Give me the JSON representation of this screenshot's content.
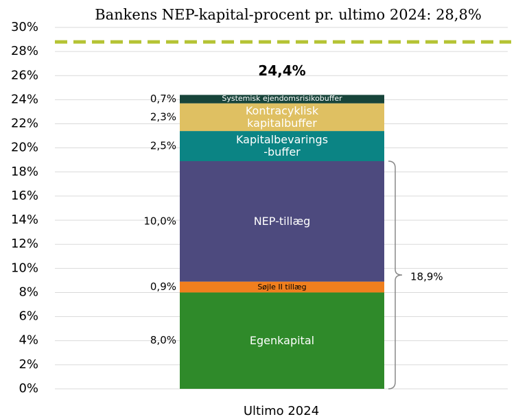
{
  "chart_data": {
    "type": "stacked_bar",
    "title": "Bankens NEP-kapital-procent pr. ultimo 2024: 28,8%",
    "categories": [
      "Ultimo 2024"
    ],
    "series": [
      {
        "name": "Egenkapital",
        "color": "#2f8a2a",
        "label_color": "#ffffff",
        "values": [
          8.0
        ],
        "value_labels": [
          "8,0%"
        ]
      },
      {
        "name": "Søjle II tillæg",
        "color": "#f07f1e",
        "label_color": "#000000",
        "values": [
          0.9
        ],
        "value_labels": [
          "0,9%"
        ]
      },
      {
        "name": "NEP-tillæg",
        "color": "#4d4a7e",
        "label_color": "#ffffff",
        "values": [
          10.0
        ],
        "value_labels": [
          "10,0%"
        ]
      },
      {
        "name": "Kapitalbevarings\n-buffer",
        "color": "#0b8484",
        "label_color": "#ffffff",
        "values": [
          2.5
        ],
        "value_labels": [
          "2,5%"
        ]
      },
      {
        "name": "Kontracyklisk\nkapitalbuffer",
        "color": "#dfc062",
        "label_color": "#ffffff",
        "values": [
          2.3
        ],
        "value_labels": [
          "2,3%"
        ]
      },
      {
        "name": "Systemisk ejendomsrisikobuffer",
        "color": "#17443a",
        "label_color": "#ffffff",
        "values": [
          0.7
        ],
        "value_labels": [
          "0,7%"
        ]
      }
    ],
    "total": {
      "value": 24.4,
      "label": "24,4%"
    },
    "brace": {
      "value": 18.9,
      "label": "18,9%"
    },
    "reference_line": {
      "value": 28.8,
      "color": "#b5c334"
    },
    "ylim": [
      0,
      30
    ],
    "yticks": [
      {
        "value": 0,
        "label": "0%"
      },
      {
        "value": 2,
        "label": "2%"
      },
      {
        "value": 4,
        "label": "4%"
      },
      {
        "value": 6,
        "label": "6%"
      },
      {
        "value": 8,
        "label": "8%"
      },
      {
        "value": 10,
        "label": "10%"
      },
      {
        "value": 12,
        "label": "12%"
      },
      {
        "value": 14,
        "label": "14%"
      },
      {
        "value": 16,
        "label": "16%"
      },
      {
        "value": 18,
        "label": "18%"
      },
      {
        "value": 20,
        "label": "20%"
      },
      {
        "value": 22,
        "label": "22%"
      },
      {
        "value": 24,
        "label": "24%"
      },
      {
        "value": 26,
        "label": "26%"
      },
      {
        "value": 28,
        "label": "28%"
      },
      {
        "value": 30,
        "label": "30%"
      }
    ],
    "grid": true
  }
}
